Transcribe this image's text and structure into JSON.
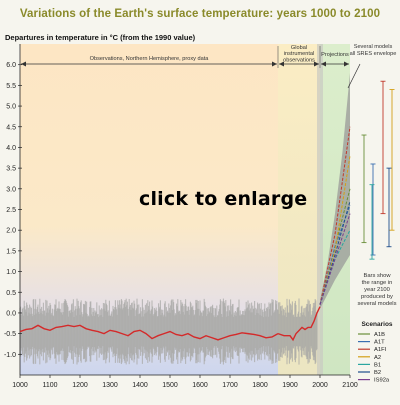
{
  "title": "Variations of the Earth's surface temperature: years 1000 to 2100",
  "link_text": "click to enlarge",
  "chart_data": {
    "type": "line",
    "ylabel": "Departures in temperature in °C (from the 1990 value)",
    "xlim": [
      1000,
      2100
    ],
    "ylim": [
      -1.5,
      6.5
    ],
    "x_ticks": [
      1000,
      1100,
      1200,
      1300,
      1400,
      1500,
      1600,
      1700,
      1800,
      1900,
      2000,
      2100
    ],
    "y_ticks": [
      "6.0",
      "5.5",
      "5.0",
      "4.5",
      "4.0",
      "3.5",
      "3.0",
      "2.5",
      "2.0",
      "1.5",
      "1.0",
      "0.5",
      "0.0",
      "-0.5",
      "-1.0"
    ],
    "grid": false,
    "regions": [
      {
        "label": "Observations, Northern Hemisphere, proxy data",
        "from": 1000,
        "to": 1860
      },
      {
        "label": "Global instrumental observations",
        "from": 1860,
        "to": 2000
      },
      {
        "label": "Projections",
        "from": 2000,
        "to": 2100
      }
    ],
    "envelope_label": "Several models all SRES envelope",
    "bars_label": "Bars show the range in year 2100 produced by several models",
    "legend_title": "Scenarios",
    "legend_position": "bottom-right",
    "proxy_reconstruction": {
      "x": [
        1000,
        1020,
        1040,
        1060,
        1080,
        1100,
        1120,
        1140,
        1160,
        1180,
        1200,
        1220,
        1240,
        1260,
        1280,
        1300,
        1320,
        1340,
        1360,
        1380,
        1400,
        1420,
        1440,
        1460,
        1480,
        1500,
        1520,
        1540,
        1560,
        1580,
        1600,
        1620,
        1640,
        1660,
        1680,
        1700,
        1720,
        1740,
        1760,
        1780,
        1800,
        1820,
        1840,
        1860
      ],
      "y": [
        -0.45,
        -0.4,
        -0.38,
        -0.3,
        -0.38,
        -0.42,
        -0.35,
        -0.33,
        -0.3,
        -0.33,
        -0.3,
        -0.38,
        -0.42,
        -0.45,
        -0.5,
        -0.42,
        -0.45,
        -0.5,
        -0.55,
        -0.45,
        -0.42,
        -0.5,
        -0.62,
        -0.55,
        -0.5,
        -0.45,
        -0.52,
        -0.55,
        -0.5,
        -0.58,
        -0.62,
        -0.55,
        -0.6,
        -0.65,
        -0.6,
        -0.55,
        -0.52,
        -0.48,
        -0.5,
        -0.52,
        -0.55,
        -0.6,
        -0.58,
        -0.5
      ]
    },
    "instrumental": {
      "x": [
        1860,
        1880,
        1900,
        1910,
        1920,
        1940,
        1950,
        1960,
        1970,
        1980,
        1990,
        2000
      ],
      "y": [
        -0.5,
        -0.55,
        -0.55,
        -0.65,
        -0.5,
        -0.35,
        -0.4,
        -0.35,
        -0.35,
        -0.2,
        0.0,
        0.15
      ]
    },
    "series": [
      {
        "name": "A1B",
        "color": "#6a8f3a",
        "x": [
          2000,
          2050,
          2100
        ],
        "y": [
          0.2,
          1.6,
          3.0
        ]
      },
      {
        "name": "A1T",
        "color": "#3a6fb0",
        "x": [
          2000,
          2050,
          2100
        ],
        "y": [
          0.2,
          1.6,
          2.6
        ]
      },
      {
        "name": "A1FI",
        "color": "#c0392b",
        "x": [
          2000,
          2050,
          2100
        ],
        "y": [
          0.2,
          1.9,
          4.5
        ]
      },
      {
        "name": "A2",
        "color": "#d4a017",
        "x": [
          2000,
          2050,
          2100
        ],
        "y": [
          0.2,
          1.5,
          3.8
        ]
      },
      {
        "name": "B1",
        "color": "#2aa6a0",
        "x": [
          2000,
          2050,
          2100
        ],
        "y": [
          0.2,
          1.3,
          2.0
        ]
      },
      {
        "name": "B2",
        "color": "#1f4e8c",
        "x": [
          2000,
          2050,
          2100
        ],
        "y": [
          0.2,
          1.4,
          2.7
        ]
      },
      {
        "name": "IS92a",
        "color": "#7a3f8f",
        "x": [
          2000,
          2050,
          2100
        ],
        "y": [
          0.2,
          1.3,
          2.4
        ]
      }
    ],
    "envelope": {
      "x": [
        2000,
        2025,
        2050,
        2075,
        2100
      ],
      "low": [
        0.1,
        0.45,
        0.8,
        1.1,
        1.4
      ],
      "high": [
        0.3,
        1.2,
        2.4,
        3.9,
        5.8
      ]
    },
    "range_bars": [
      {
        "name": "A1B",
        "color": "#6a8f3a",
        "low": 1.7,
        "high": 4.3
      },
      {
        "name": "A1T",
        "color": "#3a6fb0",
        "low": 1.4,
        "high": 3.6
      },
      {
        "name": "A1FI",
        "color": "#c0392b",
        "low": 2.4,
        "high": 5.6
      },
      {
        "name": "A2",
        "color": "#d4a017",
        "low": 2.0,
        "high": 5.4
      },
      {
        "name": "B1",
        "color": "#2aa6a0",
        "low": 1.3,
        "high": 3.1
      },
      {
        "name": "B2",
        "color": "#1f4e8c",
        "low": 1.6,
        "high": 3.5
      }
    ]
  }
}
